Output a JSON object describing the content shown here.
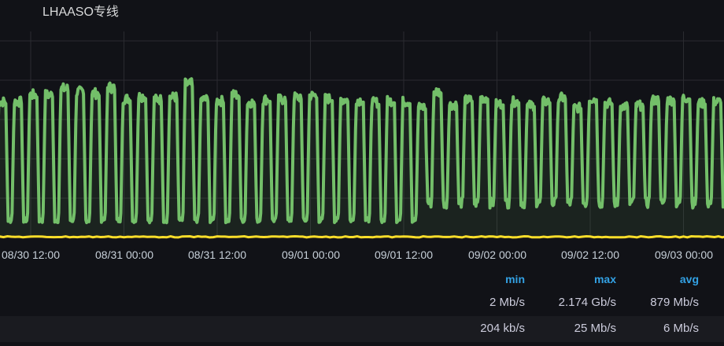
{
  "panel": {
    "title": "LHAASO专线"
  },
  "chart_data": {
    "type": "area",
    "x_ticks": [
      "08/30 12:00",
      "08/31 00:00",
      "08/31 12:00",
      "09/01 00:00",
      "09/01 12:00",
      "09/02 00:00",
      "09/02 12:00",
      "09/03 00:00"
    ],
    "y_unit": "Mb/s",
    "ylim": [
      0,
      2250
    ],
    "grid": true,
    "series": [
      {
        "color": "#73bf69",
        "fill": true,
        "first_peak": "08/30 08:20",
        "peak_interval_hours": 2,
        "peaks": [
          1926,
          1926,
          2023,
          2023,
          2109,
          2066,
          2044,
          2130,
          1969,
          2001,
          1958,
          1991,
          2174,
          1958,
          1937,
          2023,
          1915,
          1958,
          1958,
          1991,
          2012,
          1969,
          1958,
          1948,
          1915,
          1937,
          1926,
          1851,
          2066,
          1883,
          1948,
          1980,
          1894,
          1926,
          1872,
          1926,
          1980,
          1840,
          1969,
          1905,
          1862,
          1872,
          1948,
          1948,
          1980,
          1905,
          1926
        ],
        "baseline_before": 237,
        "baseline_after": 474,
        "baseline_change": "09/01 15:00"
      },
      {
        "color": "#fade2a",
        "fill": false,
        "level": 6
      }
    ]
  },
  "legend": {
    "headers": {
      "min": "min",
      "max": "max",
      "avg": "avg"
    },
    "rows": [
      {
        "min": "2 Mb/s",
        "max": "2.174 Gb/s",
        "avg": "879 Mb/s"
      },
      {
        "min": "204 kb/s",
        "max": "25 Mb/s",
        "avg": "6 Mb/s"
      }
    ]
  }
}
